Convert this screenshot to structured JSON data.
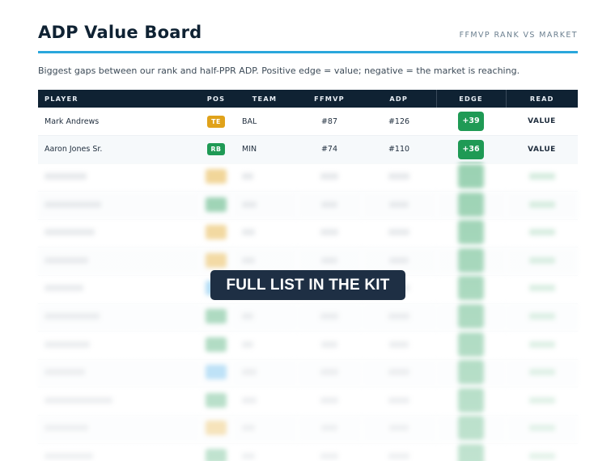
{
  "header": {
    "title": "ADP Value Board",
    "subtitle": "FFMVP RANK VS MARKET"
  },
  "description": "Biggest gaps between our rank and half-PPR ADP. Positive edge = value; negative = the market is reaching.",
  "table": {
    "columns": [
      "PLAYER",
      "POS",
      "TEAM",
      "FFMVP",
      "ADP",
      "EDGE",
      "READ"
    ],
    "rows": [
      {
        "player": "Mark Andrews",
        "pos": "TE",
        "team": "BAL",
        "ffmvp": "#87",
        "adp": "#126",
        "edge": "+39",
        "read": "VALUE"
      },
      {
        "player": "Aaron Jones Sr.",
        "pos": "RB",
        "team": "MIN",
        "ffmvp": "#74",
        "adp": "#110",
        "edge": "+36",
        "read": "VALUE"
      }
    ]
  },
  "cta": {
    "label": "FULL LIST IN THE KIT"
  },
  "colors": {
    "accent": "#2aa7dc",
    "header_bg": "#0f2233",
    "value_green": "#1f9a55",
    "te_badge": "#e0a21a",
    "rb_badge": "#1f9a55",
    "wr_badge": "#3aa6e6"
  }
}
